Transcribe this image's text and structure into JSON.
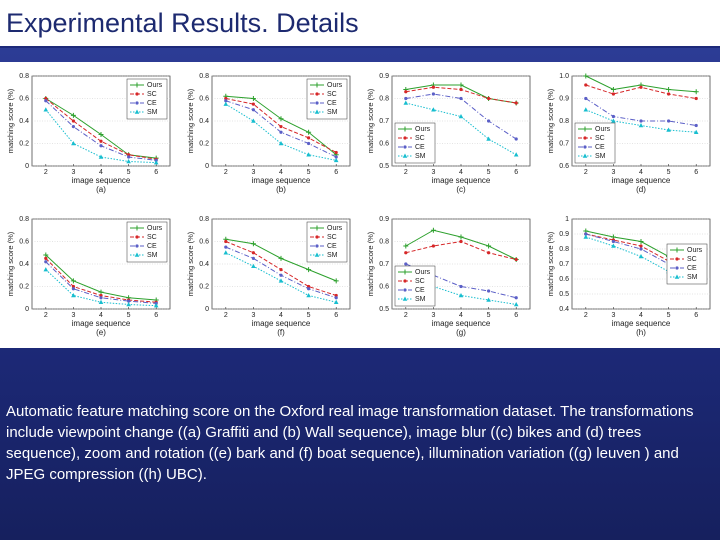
{
  "title": "Experimental Results. Details",
  "caption": "Automatic feature matching score on the Oxford real image transformation dataset. The transformations include viewpoint change ((a) Graffiti and (b) Wall sequence), image blur ((c) bikes and (d) trees sequence), zoom and rotation ((e) bark and (f) boat sequence), illumination variation ((g) leuven ) and JPEG compression ((h) UBC).",
  "chart_data": [
    {
      "type": "line",
      "label": "(a)",
      "xlabel": "image sequence",
      "ylabel": "matching score (%)",
      "x": [
        2,
        3,
        4,
        5,
        6
      ],
      "xlim": [
        1.5,
        6.5
      ],
      "xticks": [
        2,
        3,
        4,
        5,
        6
      ],
      "ylim": [
        0,
        0.8
      ],
      "yticks": [
        0,
        0.2,
        0.4,
        0.6,
        0.8
      ],
      "legend": "upper right",
      "series": [
        {
          "name": "Ours",
          "color": "#2ca02c",
          "marker": "plus",
          "dash": "solid",
          "values": [
            0.6,
            0.45,
            0.28,
            0.1,
            0.07
          ]
        },
        {
          "name": "SC",
          "color": "#d62728",
          "marker": "circle",
          "dash": "dashed",
          "values": [
            0.6,
            0.4,
            0.22,
            0.1,
            0.06
          ]
        },
        {
          "name": "CE",
          "color": "#5b5fc7",
          "marker": "circle",
          "dash": "dashdot",
          "values": [
            0.58,
            0.35,
            0.18,
            0.08,
            0.05
          ]
        },
        {
          "name": "SM",
          "color": "#17becf",
          "marker": "triangle",
          "dash": "dotted",
          "values": [
            0.5,
            0.2,
            0.08,
            0.04,
            0.03
          ]
        }
      ]
    },
    {
      "type": "line",
      "label": "(b)",
      "xlabel": "image sequence",
      "ylabel": "matching score (%)",
      "x": [
        2,
        3,
        4,
        5,
        6
      ],
      "xlim": [
        1.5,
        6.5
      ],
      "xticks": [
        2,
        3,
        4,
        5,
        6
      ],
      "ylim": [
        0,
        0.8
      ],
      "yticks": [
        0,
        0.2,
        0.4,
        0.6,
        0.8
      ],
      "legend": "upper right",
      "series": [
        {
          "name": "Ours",
          "color": "#2ca02c",
          "marker": "plus",
          "dash": "solid",
          "values": [
            0.62,
            0.6,
            0.42,
            0.3,
            0.1
          ]
        },
        {
          "name": "SC",
          "color": "#d62728",
          "marker": "circle",
          "dash": "dashed",
          "values": [
            0.6,
            0.55,
            0.35,
            0.25,
            0.12
          ]
        },
        {
          "name": "CE",
          "color": "#5b5fc7",
          "marker": "circle",
          "dash": "dashdot",
          "values": [
            0.58,
            0.5,
            0.3,
            0.2,
            0.08
          ]
        },
        {
          "name": "SM",
          "color": "#17becf",
          "marker": "triangle",
          "dash": "dotted",
          "values": [
            0.55,
            0.4,
            0.2,
            0.1,
            0.05
          ]
        }
      ]
    },
    {
      "type": "line",
      "label": "(c)",
      "xlabel": "image sequence",
      "ylabel": "matching score (%)",
      "x": [
        2,
        3,
        4,
        5,
        6
      ],
      "xlim": [
        1.5,
        6.5
      ],
      "xticks": [
        2,
        3,
        4,
        5,
        6
      ],
      "ylim": [
        0.5,
        0.9
      ],
      "yticks": [
        0.5,
        0.6,
        0.7,
        0.8,
        0.9
      ],
      "legend": "lower left",
      "series": [
        {
          "name": "Ours",
          "color": "#2ca02c",
          "marker": "plus",
          "dash": "solid",
          "values": [
            0.84,
            0.86,
            0.86,
            0.8,
            0.78
          ]
        },
        {
          "name": "SC",
          "color": "#d62728",
          "marker": "circle",
          "dash": "dashed",
          "values": [
            0.83,
            0.85,
            0.84,
            0.8,
            0.78
          ]
        },
        {
          "name": "CE",
          "color": "#5b5fc7",
          "marker": "circle",
          "dash": "dashdot",
          "values": [
            0.8,
            0.82,
            0.8,
            0.7,
            0.62
          ]
        },
        {
          "name": "SM",
          "color": "#17becf",
          "marker": "triangle",
          "dash": "dotted",
          "values": [
            0.78,
            0.75,
            0.72,
            0.62,
            0.55
          ]
        }
      ]
    },
    {
      "type": "line",
      "label": "(d)",
      "xlabel": "image sequence",
      "ylabel": "matching score (%)",
      "x": [
        2,
        3,
        4,
        5,
        6
      ],
      "xlim": [
        1.5,
        6.5
      ],
      "xticks": [
        2,
        3,
        4,
        5,
        6
      ],
      "ylim": [
        0.6,
        1
      ],
      "yticks": [
        0.6,
        0.7,
        0.8,
        0.9,
        {
          "value": 1,
          "label": "1.0"
        }
      ],
      "legend": "lower left",
      "series": [
        {
          "name": "Ours",
          "color": "#2ca02c",
          "marker": "plus",
          "dash": "solid",
          "values": [
            1,
            0.94,
            0.96,
            0.94,
            0.93
          ]
        },
        {
          "name": "SC",
          "color": "#d62728",
          "marker": "circle",
          "dash": "dashed",
          "values": [
            0.96,
            0.92,
            0.95,
            0.92,
            0.9
          ]
        },
        {
          "name": "CE",
          "color": "#5b5fc7",
          "marker": "circle",
          "dash": "dashdot",
          "values": [
            0.9,
            0.82,
            0.8,
            0.8,
            0.78
          ]
        },
        {
          "name": "SM",
          "color": "#17becf",
          "marker": "triangle",
          "dash": "dotted",
          "values": [
            0.85,
            0.8,
            0.78,
            0.76,
            0.75
          ]
        }
      ]
    },
    {
      "type": "line",
      "label": "(e)",
      "xlabel": "image sequence",
      "ylabel": "matching score (%)",
      "x": [
        2,
        3,
        4,
        5,
        6
      ],
      "xlim": [
        1.5,
        6.5
      ],
      "xticks": [
        2,
        3,
        4,
        5,
        6
      ],
      "ylim": [
        0,
        0.8
      ],
      "yticks": [
        0,
        0.2,
        0.4,
        0.6,
        0.8
      ],
      "legend": "upper right",
      "series": [
        {
          "name": "Ours",
          "color": "#2ca02c",
          "marker": "plus",
          "dash": "solid",
          "values": [
            0.48,
            0.25,
            0.15,
            0.1,
            0.08
          ]
        },
        {
          "name": "SC",
          "color": "#d62728",
          "marker": "circle",
          "dash": "dashed",
          "values": [
            0.45,
            0.2,
            0.12,
            0.08,
            0.06
          ]
        },
        {
          "name": "CE",
          "color": "#5b5fc7",
          "marker": "circle",
          "dash": "dashdot",
          "values": [
            0.42,
            0.18,
            0.1,
            0.07,
            0.05
          ]
        },
        {
          "name": "SM",
          "color": "#17becf",
          "marker": "triangle",
          "dash": "dotted",
          "values": [
            0.35,
            0.12,
            0.06,
            0.04,
            0.03
          ]
        }
      ]
    },
    {
      "type": "line",
      "label": "(f)",
      "xlabel": "image sequence",
      "ylabel": "matching score (%)",
      "x": [
        2,
        3,
        4,
        5,
        6
      ],
      "xlim": [
        1.5,
        6.5
      ],
      "xticks": [
        2,
        3,
        4,
        5,
        6
      ],
      "ylim": [
        0,
        0.8
      ],
      "yticks": [
        0,
        0.2,
        0.4,
        0.6,
        0.8
      ],
      "legend": "upper right",
      "series": [
        {
          "name": "Ours",
          "color": "#2ca02c",
          "marker": "plus",
          "dash": "solid",
          "values": [
            0.62,
            0.58,
            0.45,
            0.35,
            0.25
          ]
        },
        {
          "name": "SC",
          "color": "#d62728",
          "marker": "circle",
          "dash": "dashed",
          "values": [
            0.6,
            0.5,
            0.35,
            0.2,
            0.12
          ]
        },
        {
          "name": "CE",
          "color": "#5b5fc7",
          "marker": "circle",
          "dash": "dashdot",
          "values": [
            0.55,
            0.45,
            0.3,
            0.18,
            0.1
          ]
        },
        {
          "name": "SM",
          "color": "#17becf",
          "marker": "triangle",
          "dash": "dotted",
          "values": [
            0.5,
            0.38,
            0.25,
            0.12,
            0.06
          ]
        }
      ]
    },
    {
      "type": "line",
      "label": "(g)",
      "xlabel": "image sequence",
      "ylabel": "matching score (%)",
      "x": [
        2,
        3,
        4,
        5,
        6
      ],
      "xlim": [
        1.5,
        6.5
      ],
      "xticks": [
        2,
        3,
        4,
        5,
        6
      ],
      "ylim": [
        0.5,
        0.9
      ],
      "yticks": [
        0.5,
        0.6,
        0.7,
        0.8,
        0.9
      ],
      "legend": "lower left",
      "series": [
        {
          "name": "Ours",
          "color": "#2ca02c",
          "marker": "plus",
          "dash": "solid",
          "values": [
            0.78,
            0.85,
            0.82,
            0.78,
            0.72
          ]
        },
        {
          "name": "SC",
          "color": "#d62728",
          "marker": "circle",
          "dash": "dashed",
          "values": [
            0.75,
            0.78,
            0.8,
            0.75,
            0.72
          ]
        },
        {
          "name": "CE",
          "color": "#5b5fc7",
          "marker": "circle",
          "dash": "dashdot",
          "values": [
            0.7,
            0.65,
            0.6,
            0.58,
            0.55
          ]
        },
        {
          "name": "SM",
          "color": "#17becf",
          "marker": "triangle",
          "dash": "dotted",
          "values": [
            0.65,
            0.6,
            0.56,
            0.54,
            0.52
          ]
        }
      ]
    },
    {
      "type": "line",
      "label": "(h)",
      "xlabel": "image sequence",
      "ylabel": "matching score (%)",
      "x": [
        2,
        3,
        4,
        5,
        6
      ],
      "xlim": [
        1.5,
        6.5
      ],
      "xticks": [
        2,
        3,
        4,
        5,
        6
      ],
      "ylim": [
        0.4,
        1
      ],
      "yticks": [
        0.4,
        0.5,
        0.6,
        0.7,
        0.8,
        0.9,
        1
      ],
      "legend": "center right",
      "series": [
        {
          "name": "Ours",
          "color": "#2ca02c",
          "marker": "plus",
          "dash": "solid",
          "values": [
            0.92,
            0.88,
            0.85,
            0.75,
            0.7
          ]
        },
        {
          "name": "SC",
          "color": "#d62728",
          "marker": "circle",
          "dash": "dashed",
          "values": [
            0.9,
            0.86,
            0.82,
            0.72,
            0.68
          ]
        },
        {
          "name": "CE",
          "color": "#5b5fc7",
          "marker": "circle",
          "dash": "dashdot",
          "values": [
            0.9,
            0.85,
            0.8,
            0.7,
            0.65
          ]
        },
        {
          "name": "SM",
          "color": "#17becf",
          "marker": "triangle",
          "dash": "dotted",
          "values": [
            0.88,
            0.82,
            0.75,
            0.65,
            0.6
          ]
        }
      ]
    }
  ]
}
